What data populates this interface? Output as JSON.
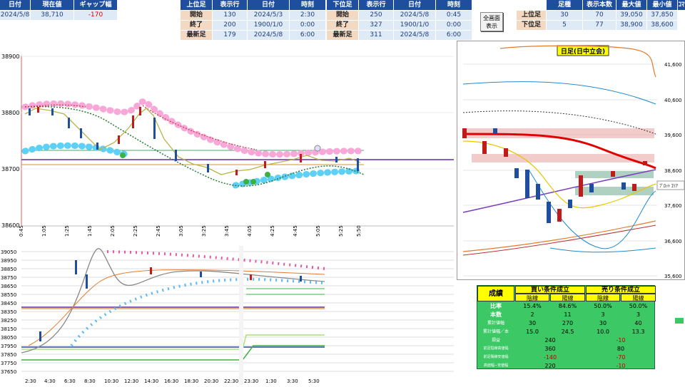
{
  "topbar": {
    "date_header": "日付",
    "price_header": "現在値",
    "gap_header": "ギャップ幅",
    "date_value": "2024/5/8",
    "price_value": "38,710",
    "gap_value": "-170"
  },
  "upper": {
    "header": "上位足",
    "disp_header": "表示行",
    "date_header": "日付",
    "time_header": "時刻",
    "rows": [
      {
        "label": "開始",
        "row": "130",
        "date": "2024/5/3",
        "time": "2:30"
      },
      {
        "label": "終了",
        "row": "200",
        "date": "1900/1/0",
        "time": "0:00"
      },
      {
        "label": "最新足",
        "row": "179",
        "date": "2024/5/8",
        "time": "6:00"
      }
    ]
  },
  "lower": {
    "header": "下位足",
    "disp_header": "表示行",
    "date_header": "日付",
    "time_header": "時刻",
    "rows": [
      {
        "label": "開始",
        "row": "250",
        "date": "2024/5/8",
        "time": "0:45"
      },
      {
        "label": "終了",
        "row": "327",
        "date": "1900/1/0",
        "time": "0:00"
      },
      {
        "label": "最新足",
        "row": "311",
        "date": "2024/5/8",
        "time": "6:00"
      }
    ]
  },
  "fullscreen_button": {
    "line1": "全画面",
    "line2": "表示"
  },
  "summary": {
    "col_foot": "足種",
    "col_count": "表示本数",
    "col_max": "最大値",
    "col_min": "最小値",
    "col_extra": "ｺﾏ",
    "rows": [
      {
        "label": "上位足",
        "foot": "30",
        "count": "70",
        "max": "39,050",
        "min": "37,850"
      },
      {
        "label": "下位足",
        "foot": "5",
        "count": "77",
        "max": "38,900",
        "min": "38,600"
      }
    ]
  },
  "chart_main": {
    "y_ticks": [
      "38900",
      "38800",
      "38700",
      "38600"
    ],
    "x_ticks": [
      "0:45",
      "1:05",
      "1:25",
      "1:45",
      "2:05",
      "2:25",
      "2:45",
      "3:05",
      "3:25",
      "3:45",
      "4:05",
      "4:25",
      "4:45",
      "5:05",
      "5:25",
      "5:50"
    ]
  },
  "chart_lower": {
    "y_ticks": [
      "39050",
      "38950",
      "38850",
      "38750",
      "38650",
      "38550",
      "38450",
      "38350",
      "38250",
      "38150",
      "38050",
      "37950",
      "37850",
      "37750",
      "37650"
    ],
    "x_ticks": [
      "2:30",
      "4:30",
      "6:30",
      "8:30",
      "10:30",
      "12:30",
      "14:30",
      "16:30",
      "18:30",
      "20:30",
      "22:30",
      "23:30",
      "1:30",
      "3:30",
      "5:30"
    ]
  },
  "daily_chart": {
    "title": "日足(日中立会)",
    "y_ticks": [
      "41,600",
      "40,600",
      "39,600",
      "38,600",
      "37,600",
      "36,600",
      "35,600"
    ],
    "plot_label": "ﾌﾟﾛｯﾄ ｴﾘｱ"
  },
  "stats": {
    "title": "成績",
    "buy_header": "買い条件成立",
    "sell_header": "売り条件成立",
    "yin": "陰線",
    "yang": "陽線",
    "rows": [
      {
        "label": "比率",
        "b1": "15.4%",
        "b2": "84.6%",
        "s1": "50.0%",
        "s2": "50.0%"
      },
      {
        "label": "本数",
        "b1": "2",
        "b2": "11",
        "s1": "3",
        "s2": "3"
      },
      {
        "label": "累計値幅",
        "b1": "30",
        "b2": "270",
        "s1": "30",
        "s2": "40"
      },
      {
        "label": "累計値幅／本",
        "b1": "15.0",
        "b2": "24.5",
        "s1": "10.0",
        "s2": "13.3"
      }
    ],
    "merged_rows": [
      {
        "label": "損益",
        "buy": "240",
        "sell": "-10"
      },
      {
        "label": "前足陰線高値幅",
        "buy": "360",
        "sell": "80"
      },
      {
        "label": "前足陽線安値幅",
        "buy": "-140",
        "sell": "-70"
      },
      {
        "label": "高値幅−安値幅",
        "buy": "220",
        "sell": "-10"
      }
    ]
  },
  "colors": {
    "header_blue": "#1f4e9e",
    "pink": "#f7a8d8",
    "cyan": "#5fd0f5",
    "stats_green": "#3cc864",
    "stats_yellow": "#ffff00"
  }
}
